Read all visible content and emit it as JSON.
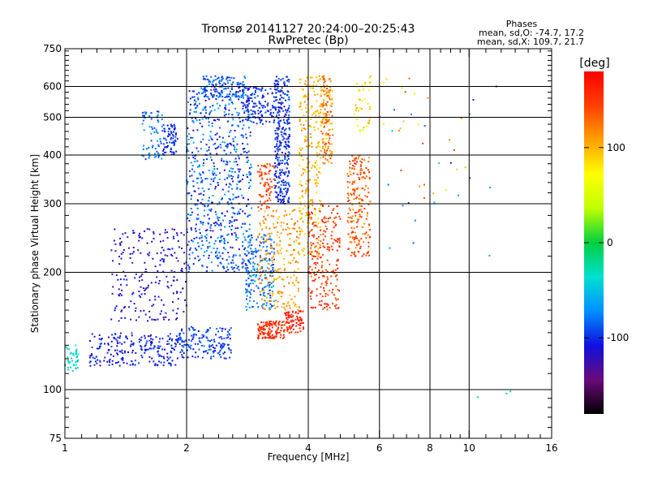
{
  "chart_data": {
    "type": "scatter",
    "title": "Tromsø 20141127 20:24:00–20:25:43",
    "subtitle": "RwPretec (Bp)",
    "xlabel": "Frequency [MHz]",
    "ylabel": "Stationary phase Virtual Height [km]",
    "x_scale": "log",
    "y_scale": "log",
    "xlim": [
      1,
      16
    ],
    "ylim": [
      75,
      750
    ],
    "x_ticks": [
      {
        "value": 1,
        "label": "1"
      },
      {
        "value": 2,
        "label": "2"
      },
      {
        "value": 4,
        "label": "4"
      },
      {
        "value": 6,
        "label": "6"
      },
      {
        "value": 8,
        "label": "8"
      },
      {
        "value": 10,
        "label": "10"
      },
      {
        "value": 16,
        "label": "16"
      }
    ],
    "x_minor_ticks": [
      1.1,
      1.2,
      1.3,
      1.4,
      1.5,
      1.6,
      1.7,
      1.8,
      1.9,
      2.2,
      2.4,
      2.6,
      2.8,
      3,
      3.2,
      3.4,
      3.6,
      3.8,
      4.4,
      4.8,
      5.2,
      5.6,
      6.5,
      7,
      7.5,
      8.5,
      9,
      9.5,
      11,
      12,
      13,
      14,
      15
    ],
    "x_grid": [
      2,
      4,
      6,
      8,
      10
    ],
    "y_ticks": [
      {
        "value": 75,
        "label": "75"
      },
      {
        "value": 100,
        "label": "100"
      },
      {
        "value": 200,
        "label": "200"
      },
      {
        "value": 300,
        "label": "300"
      },
      {
        "value": 400,
        "label": "400"
      },
      {
        "value": 500,
        "label": "500"
      },
      {
        "value": 600,
        "label": "600"
      },
      {
        "value": 750,
        "label": "750"
      }
    ],
    "y_minor_ticks": [
      80,
      85,
      90,
      95,
      110,
      120,
      130,
      140,
      150,
      160,
      170,
      180,
      190,
      220,
      240,
      260,
      280,
      320,
      340,
      360,
      380,
      420,
      440,
      460,
      480,
      520,
      540,
      560,
      580,
      620,
      640,
      660,
      680,
      700,
      720,
      740
    ],
    "y_grid": [
      100,
      200,
      300,
      400,
      500,
      600
    ],
    "grid": true,
    "phase_box": {
      "title": "Phases",
      "line1": "mean, sd,O: -74.7, 17.2",
      "line2": "mean, sd,X: 109.7, 21.7"
    },
    "colorbar": {
      "label": "[deg]",
      "range": [
        -180,
        180
      ],
      "ticks": [
        {
          "value": 100,
          "label": "100"
        },
        {
          "value": 0,
          "label": "0"
        },
        {
          "value": -100,
          "label": "-100"
        }
      ],
      "colors": [
        "#000000",
        "#6a0a7a",
        "#1010e0",
        "#0090ff",
        "#00e0d0",
        "#00d040",
        "#c0ff00",
        "#ffff00",
        "#ffa000",
        "#ff4000",
        "#ff0000"
      ]
    },
    "clusters": [
      {
        "f": [
          1.0,
          1.08
        ],
        "h": [
          110,
          130
        ],
        "phase": [
          -50,
          -20
        ],
        "n": 40
      },
      {
        "f": [
          1.15,
          1.9
        ],
        "h": [
          115,
          140
        ],
        "phase": [
          -120,
          -90
        ],
        "n": 220
      },
      {
        "f": [
          1.9,
          2.6
        ],
        "h": [
          120,
          145
        ],
        "phase": [
          -110,
          -80
        ],
        "n": 160
      },
      {
        "f": [
          1.3,
          2.0
        ],
        "h": [
          150,
          260
        ],
        "phase": [
          -130,
          -100
        ],
        "n": 220
      },
      {
        "f": [
          1.75,
          1.9
        ],
        "h": [
          400,
          480
        ],
        "phase": [
          -110,
          -90
        ],
        "n": 70
      },
      {
        "f": [
          1.55,
          1.75
        ],
        "h": [
          390,
          520
        ],
        "phase": [
          -100,
          -60
        ],
        "n": 70
      },
      {
        "f": [
          2.0,
          2.9
        ],
        "h": [
          200,
          600
        ],
        "phase": [
          -120,
          -60
        ],
        "n": 700
      },
      {
        "f": [
          2.2,
          2.8
        ],
        "h": [
          560,
          640
        ],
        "phase": [
          -110,
          -70
        ],
        "n": 120
      },
      {
        "f": [
          2.8,
          3.3
        ],
        "h": [
          160,
          250
        ],
        "phase": [
          -100,
          -60
        ],
        "n": 200
      },
      {
        "f": [
          2.8,
          3.3
        ],
        "h": [
          480,
          600
        ],
        "phase": [
          -110,
          -90
        ],
        "n": 120
      },
      {
        "f": [
          3.3,
          3.6
        ],
        "h": [
          300,
          640
        ],
        "phase": [
          -120,
          -80
        ],
        "n": 320
      },
      {
        "f": [
          3.0,
          3.5
        ],
        "h": [
          135,
          150
        ],
        "phase": [
          140,
          170
        ],
        "n": 130
      },
      {
        "f": [
          3.5,
          3.9
        ],
        "h": [
          140,
          160
        ],
        "phase": [
          150,
          175
        ],
        "n": 80
      },
      {
        "f": [
          3.0,
          3.3
        ],
        "h": [
          290,
          380
        ],
        "phase": [
          130,
          160
        ],
        "n": 70
      },
      {
        "f": [
          3.0,
          3.8
        ],
        "h": [
          160,
          290
        ],
        "phase": [
          90,
          130
        ],
        "n": 220
      },
      {
        "f": [
          3.8,
          4.3
        ],
        "h": [
          220,
          640
        ],
        "phase": [
          80,
          120
        ],
        "n": 260
      },
      {
        "f": [
          4.0,
          4.8
        ],
        "h": [
          160,
          300
        ],
        "phase": [
          130,
          165
        ],
        "n": 220
      },
      {
        "f": [
          4.3,
          4.6
        ],
        "h": [
          380,
          640
        ],
        "phase": [
          90,
          150
        ],
        "n": 160
      },
      {
        "f": [
          5.0,
          5.7
        ],
        "h": [
          220,
          400
        ],
        "phase": [
          110,
          160
        ],
        "n": 200
      },
      {
        "f": [
          5.2,
          5.7
        ],
        "h": [
          460,
          640
        ],
        "phase": [
          60,
          110
        ],
        "n": 40
      },
      {
        "f": [
          6.0,
          10.0
        ],
        "h": [
          300,
          640
        ],
        "phase": [
          40,
          150
        ],
        "n": 25
      },
      {
        "f": [
          6.3,
          12.5
        ],
        "h": [
          220,
          620
        ],
        "phase": [
          -120,
          -40
        ],
        "n": 20
      },
      {
        "f": [
          10.5,
          13.0
        ],
        "h": [
          95,
          100
        ],
        "phase": [
          -40,
          -20
        ],
        "n": 3
      }
    ]
  }
}
